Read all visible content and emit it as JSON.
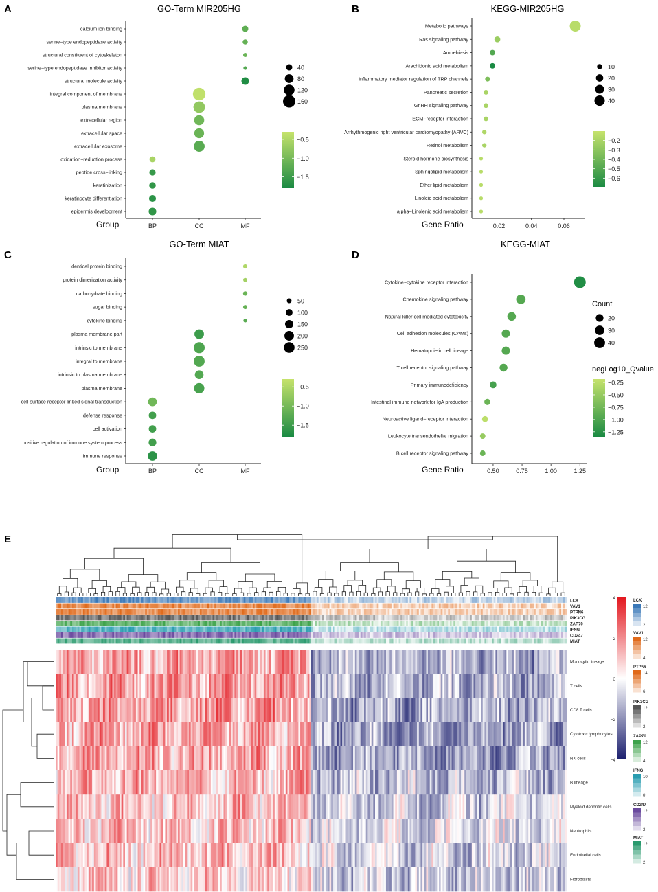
{
  "colors": {
    "low": "#1a8a43",
    "high": "#c6e36c",
    "heat_neg": "#1b1f6e",
    "heat_mid": "#ffffff",
    "heat_pos": "#e3181f"
  },
  "chart_data": [
    {
      "panel": "A",
      "type": "scatter",
      "title": "GO-Term MIR205HG",
      "xlabel": "Group",
      "x_categories": [
        "BP",
        "CC",
        "MF"
      ],
      "y_categories": [
        "calcium ion binding",
        "serine−type endopeptidase activity",
        "structural constituent of cytoskeleton",
        "serine−type endopeptidase inhibitor activity",
        "structural molecule activity",
        "integral component of membrane",
        "plasma membrane",
        "extracellular region",
        "extracellular space",
        "extracellular exosome",
        "oxidation−reduction process",
        "peptide cross−linking",
        "keratinization",
        "keratinocyte differentiation",
        "epidermis development"
      ],
      "points": [
        {
          "y": "calcium ion binding",
          "x": "MF",
          "size": 40,
          "color": -1.2
        },
        {
          "y": "serine−type endopeptidase activity",
          "x": "MF",
          "size": 28,
          "color": -1.15
        },
        {
          "y": "structural constituent of cytoskeleton",
          "x": "MF",
          "size": 18,
          "color": -1.1
        },
        {
          "y": "serine−type endopeptidase inhibitor activity",
          "x": "MF",
          "size": 14,
          "color": -1.3
        },
        {
          "y": "structural molecule activity",
          "x": "MF",
          "size": 60,
          "color": -1.75
        },
        {
          "y": "integral component of membrane",
          "x": "CC",
          "size": 165,
          "color": -0.35
        },
        {
          "y": "plasma membrane",
          "x": "CC",
          "size": 140,
          "color": -0.75
        },
        {
          "y": "extracellular region",
          "x": "CC",
          "size": 105,
          "color": -1.05
        },
        {
          "y": "extracellular space",
          "x": "CC",
          "size": 100,
          "color": -1.1
        },
        {
          "y": "extracellular exosome",
          "x": "CC",
          "size": 125,
          "color": -1.25
        },
        {
          "y": "oxidation−reduction process",
          "x": "BP",
          "size": 38,
          "color": -0.55
        },
        {
          "y": "peptide cross−linking",
          "x": "BP",
          "size": 42,
          "color": -1.55
        },
        {
          "y": "keratinization",
          "x": "BP",
          "size": 45,
          "color": -1.6
        },
        {
          "y": "keratinocyte differentiation",
          "x": "BP",
          "size": 50,
          "color": -1.65
        },
        {
          "y": "epidermis development",
          "x": "BP",
          "size": 60,
          "color": -1.6
        }
      ],
      "size_legend": [
        40,
        80,
        120,
        160
      ],
      "color_range": [
        -1.8,
        -0.3
      ],
      "color_ticks": [
        "−0.5",
        "−1.0",
        "−1.5"
      ],
      "color_tick_values": [
        -0.5,
        -1.0,
        -1.5
      ]
    },
    {
      "panel": "B",
      "type": "scatter",
      "title": "KEGG-MIR205HG",
      "xlabel": "Gene Ratio",
      "x_ticks": [
        "0.02",
        "0.04",
        "0.06"
      ],
      "x_tick_values": [
        0.02,
        0.04,
        0.06
      ],
      "xlim": [
        0.005,
        0.071
      ],
      "y_categories": [
        "Metabolic pathways",
        "Ras signaling pathway",
        "Amoebiasis",
        "Arachidonic acid metabolism",
        "Inflammatory mediator regulation of TRP channels",
        "Pancreatic secretion",
        "GnRH signaling pathway",
        "ECM−receptor interaction",
        "Arrhythmogenic right ventricular cardiomyopathy (ARVC)",
        "Retinol metabolism",
        "Steroid hormone biosynthesis",
        "Sphingolipid metabolism",
        "Ether lipid metabolism",
        "Linoleic acid metabolism",
        "alpha−Linolenic acid metabolism"
      ],
      "points": [
        {
          "y": "Metabolic pathways",
          "x": 0.067,
          "size": 45,
          "color": -0.15
        },
        {
          "y": "Ras signaling pathway",
          "x": 0.019,
          "size": 13,
          "color": -0.25
        },
        {
          "y": "Amoebiasis",
          "x": 0.016,
          "size": 11,
          "color": -0.5
        },
        {
          "y": "Arachidonic acid metabolism",
          "x": 0.016,
          "size": 11,
          "color": -0.7
        },
        {
          "y": "Inflammatory mediator regulation of TRP channels",
          "x": 0.013,
          "size": 9,
          "color": -0.35
        },
        {
          "y": "Pancreatic secretion",
          "x": 0.012,
          "size": 8,
          "color": -0.2
        },
        {
          "y": "GnRH signaling pathway",
          "x": 0.012,
          "size": 8,
          "color": -0.2
        },
        {
          "y": "ECM−receptor interaction",
          "x": 0.012,
          "size": 8,
          "color": -0.2
        },
        {
          "y": "Arrhythmogenic right ventricular cardiomyopathy (ARVC)",
          "x": 0.011,
          "size": 7,
          "color": -0.18
        },
        {
          "y": "Retinol metabolism",
          "x": 0.011,
          "size": 7,
          "color": -0.2
        },
        {
          "y": "Steroid hormone biosynthesis",
          "x": 0.009,
          "size": 5,
          "color": -0.15
        },
        {
          "y": "Sphingolipid metabolism",
          "x": 0.009,
          "size": 5,
          "color": -0.15
        },
        {
          "y": "Ether lipid metabolism",
          "x": 0.009,
          "size": 5,
          "color": -0.15
        },
        {
          "y": "Linoleic acid metabolism",
          "x": 0.009,
          "size": 5,
          "color": -0.15
        },
        {
          "y": "alpha−Linolenic acid metabolism",
          "x": 0.009,
          "size": 5,
          "color": -0.15
        }
      ],
      "size_legend": [
        10,
        20,
        30,
        40
      ],
      "color_range": [
        -0.7,
        -0.1
      ],
      "color_ticks": [
        "−0.2",
        "−0.3",
        "−0.4",
        "−0.5",
        "−0.6"
      ],
      "color_tick_values": [
        -0.2,
        -0.3,
        -0.4,
        -0.5,
        -0.6
      ]
    },
    {
      "panel": "C",
      "type": "scatter",
      "title": "GO-Term MIAT",
      "xlabel": "Group",
      "x_categories": [
        "BP",
        "CC",
        "MF"
      ],
      "y_categories": [
        "identical protein binding",
        "protein dimerization activity",
        "carbohydrate binding",
        "sugar binding",
        "cytokine binding",
        "plasma membrane part",
        "intrinsic to membrane",
        "integral to membrane",
        "intrinsic to plasma membrane",
        "plasma membrane",
        "cell surface receptor linked signal transduction",
        "defense response",
        "cell activation",
        "positive regulation of immune system process",
        "immune response"
      ],
      "points": [
        {
          "y": "identical protein binding",
          "x": "MF",
          "size": 40,
          "color": -0.5
        },
        {
          "y": "protein dimerization activity",
          "x": "MF",
          "size": 35,
          "color": -0.6
        },
        {
          "y": "carbohydrate binding",
          "x": "MF",
          "size": 42,
          "color": -1.1
        },
        {
          "y": "sugar binding",
          "x": "MF",
          "size": 38,
          "color": -1.15
        },
        {
          "y": "cytokine binding",
          "x": "MF",
          "size": 30,
          "color": -1.25
        },
        {
          "y": "plasma membrane part",
          "x": "CC",
          "size": 200,
          "color": -1.5
        },
        {
          "y": "intrinsic to membrane",
          "x": "CC",
          "size": 265,
          "color": -1.35
        },
        {
          "y": "integral to membrane",
          "x": "CC",
          "size": 260,
          "color": -1.3
        },
        {
          "y": "intrinsic to plasma membrane",
          "x": "CC",
          "size": 165,
          "color": -1.3
        },
        {
          "y": "plasma membrane",
          "x": "CC",
          "size": 235,
          "color": -1.4
        },
        {
          "y": "cell surface receptor linked signal transduction",
          "x": "BP",
          "size": 170,
          "color": -1.05
        },
        {
          "y": "defense response",
          "x": "BP",
          "size": 120,
          "color": -1.45
        },
        {
          "y": "cell activation",
          "x": "BP",
          "size": 120,
          "color": -1.45
        },
        {
          "y": "positive regulation of immune system process",
          "x": "BP",
          "size": 130,
          "color": -1.45
        },
        {
          "y": "immune response",
          "x": "BP",
          "size": 195,
          "color": -1.65
        }
      ],
      "size_legend": [
        50,
        100,
        150,
        200,
        250
      ],
      "color_range": [
        -1.8,
        -0.3
      ],
      "color_ticks": [
        "−0.5",
        "−1.0",
        "−1.5"
      ],
      "color_tick_values": [
        -0.5,
        -1.0,
        -1.5
      ]
    },
    {
      "panel": "D",
      "type": "scatter",
      "title": "KEGG-MIAT",
      "xlabel": "Gene Ratio",
      "x_ticks": [
        "0.50",
        "0.75",
        "1.00",
        "1.25"
      ],
      "x_tick_values": [
        0.5,
        0.75,
        1.0,
        1.25
      ],
      "xlim": [
        0.34,
        1.29
      ],
      "y_categories": [
        "Cytokine−cytokine receptor interaction",
        "Chemokine signaling pathway",
        "Natural killer cell mediated cytotoxicity",
        "Cell adhesion molecules (CAMs)",
        "Hematopoietic cell lineage",
        "T cell receptor signaling pathway",
        "Primary immunodeficiency",
        "Intestinal immune network for IgA production",
        "Neuroactive ligand−receptor interaction",
        "Leukocyte transendothelial migration",
        "B cell receptor signaling pathway"
      ],
      "points": [
        {
          "y": "Cytokine−cytokine receptor interaction",
          "x": 1.25,
          "size": 46,
          "color": -1.3
        },
        {
          "y": "Chemokine signaling pathway",
          "x": 0.74,
          "size": 30,
          "color": -0.95
        },
        {
          "y": "Natural killer cell mediated cytotoxicity",
          "x": 0.66,
          "size": 25,
          "color": -0.95
        },
        {
          "y": "Cell adhesion molecules (CAMs)",
          "x": 0.61,
          "size": 23,
          "color": -0.95
        },
        {
          "y": "Hematopoietic cell lineage",
          "x": 0.61,
          "size": 23,
          "color": -0.95
        },
        {
          "y": "T cell receptor signaling pathway",
          "x": 0.59,
          "size": 21,
          "color": -0.95
        },
        {
          "y": "Primary immunodeficiency",
          "x": 0.5,
          "size": 15,
          "color": -1.05
        },
        {
          "y": "Intestinal immune network for IgA production",
          "x": 0.45,
          "size": 13,
          "color": -0.8
        },
        {
          "y": "Neuroactive ligand−receptor interaction",
          "x": 0.43,
          "size": 12,
          "color": -0.25
        },
        {
          "y": "Leukocyte transendothelial migration",
          "x": 0.41,
          "size": 10,
          "color": -0.5
        },
        {
          "y": "B cell receptor signaling pathway",
          "x": 0.41,
          "size": 10,
          "color": -0.8
        }
      ],
      "size_legend_title": "Count",
      "size_legend": [
        20,
        30,
        40
      ],
      "color_legend_title": "negLog10_Qvalue",
      "color_range": [
        -1.35,
        -0.18
      ],
      "color_ticks": [
        "−0.25",
        "−0.50",
        "−0.75",
        "−1.00",
        "−1.25"
      ],
      "color_tick_values": [
        -0.25,
        -0.5,
        -0.75,
        -1.0,
        -1.25
      ]
    },
    {
      "panel": "E",
      "type": "heatmap",
      "annotation_tracks": [
        "LCK",
        "VAV1",
        "PTPN6",
        "PIK3CG",
        "ZAP70",
        "IFNG",
        "CD247",
        "MIAT"
      ],
      "rows": [
        "Monocytic lineage",
        "T cells",
        "CD8 T cells",
        "Cytotoxic lymphocytes",
        "NK cells",
        "B lineage",
        "Myeloid dendritic cells",
        "Neutrophils",
        "Endothelial cells",
        "Fibroblasts"
      ],
      "main_scale": {
        "ticks": [
          "4",
          "2",
          "0",
          "−2",
          "−4"
        ],
        "values": [
          4,
          2,
          0,
          -2,
          -4
        ]
      },
      "track_legends": [
        {
          "name": "LCK",
          "ticks": [
            "12",
            "2"
          ],
          "color": "#3a78b8"
        },
        {
          "name": "VAV1",
          "ticks": [
            "12",
            "4"
          ],
          "color": "#e06a1b"
        },
        {
          "name": "PTPN6",
          "ticks": [
            "14",
            "6"
          ],
          "color": "#e06a1b"
        },
        {
          "name": "PIK3CG",
          "ticks": [
            "12",
            "2"
          ],
          "color": "#555555"
        },
        {
          "name": "ZAP70",
          "ticks": [
            "12",
            "4"
          ],
          "color": "#3da24a"
        },
        {
          "name": "IFNG",
          "ticks": [
            "10",
            "0"
          ],
          "color": "#2a9db0"
        },
        {
          "name": "CD247",
          "ticks": [
            "12",
            "2"
          ],
          "color": "#6a4a9e"
        },
        {
          "name": "MIAT",
          "ticks": [
            "12",
            "2"
          ],
          "color": "#2a9a6e"
        }
      ]
    }
  ]
}
